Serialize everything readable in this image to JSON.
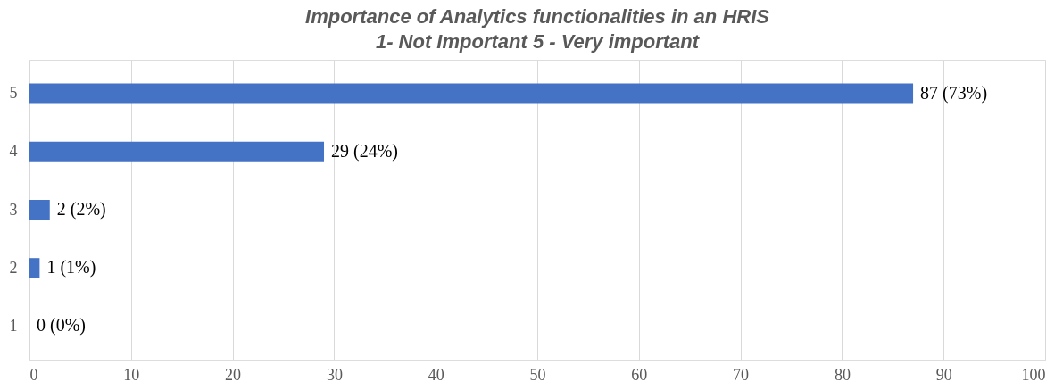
{
  "chart_data": {
    "type": "bar",
    "orientation": "horizontal",
    "title": "Importance of Analytics functionalities in an HRIS",
    "subtitle": "1- Not Important 5 - Very important",
    "categories": [
      "5",
      "4",
      "3",
      "2",
      "1"
    ],
    "values": [
      87,
      29,
      2,
      1,
      0
    ],
    "value_labels": [
      "87  (73%)",
      "29  (24%)",
      "2  (2%)",
      "1  (1%)",
      "0  (0%)"
    ],
    "color": "#4472c4",
    "xlim": [
      0,
      100
    ],
    "xticks": [
      0,
      10,
      20,
      30,
      40,
      50,
      60,
      70,
      80,
      90,
      100
    ],
    "grid": "x"
  }
}
